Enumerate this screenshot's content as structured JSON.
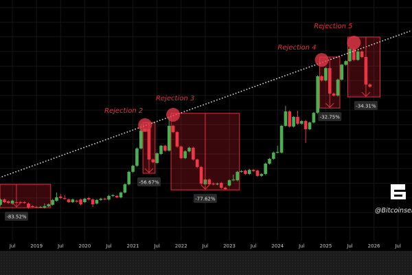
{
  "chart_data": {
    "type": "candlestick",
    "title": "",
    "xlabel": "",
    "ylabel": "",
    "y_scale": "unlabeled relative scale (no price axis shown)",
    "ylim": [
      0,
      100
    ],
    "grid": true,
    "colors": {
      "up": "#4caf50",
      "down": "#f23645",
      "trendline": "#d9d9d9",
      "background": "#000000"
    },
    "x_ticks": [
      {
        "month": "2018-07",
        "label": "Jul"
      },
      {
        "month": "2019-01",
        "label": "2019"
      },
      {
        "month": "2019-07",
        "label": "Jul"
      },
      {
        "month": "2020-01",
        "label": "2020"
      },
      {
        "month": "2020-07",
        "label": "Jul"
      },
      {
        "month": "2021-01",
        "label": "2021"
      },
      {
        "month": "2021-07",
        "label": "Jul"
      },
      {
        "month": "2022-01",
        "label": "2022"
      },
      {
        "month": "2022-07",
        "label": "Jul"
      },
      {
        "month": "2023-01",
        "label": "2023"
      },
      {
        "month": "2023-07",
        "label": "Jul"
      },
      {
        "month": "2024-01",
        "label": "2024"
      },
      {
        "month": "2024-07",
        "label": "Jul"
      },
      {
        "month": "2025-01",
        "label": "2025"
      },
      {
        "month": "2025-07",
        "label": "Jul"
      },
      {
        "month": "2026-01",
        "label": "2026"
      },
      {
        "month": "2026-07",
        "label": "Jul"
      }
    ],
    "candles": [
      {
        "month": "2018-04",
        "o": 14.9,
        "c": 17.1
      },
      {
        "month": "2018-05",
        "o": 17.1,
        "c": 16.0
      },
      {
        "month": "2018-06",
        "o": 16.3,
        "c": 15.7
      },
      {
        "month": "2018-07",
        "o": 15.4,
        "c": 16.6
      },
      {
        "month": "2018-08",
        "o": 16.0,
        "c": 15.9
      },
      {
        "month": "2018-09",
        "o": 16.0,
        "c": 15.7
      },
      {
        "month": "2018-10",
        "o": 16.0,
        "c": 15.7
      },
      {
        "month": "2018-11",
        "o": 15.4,
        "c": 13.7
      },
      {
        "month": "2018-12",
        "o": 14.3,
        "c": 14.0
      },
      {
        "month": "2019-01",
        "o": 14.0,
        "c": 13.9
      },
      {
        "month": "2019-02",
        "o": 13.9,
        "c": 14.0
      },
      {
        "month": "2019-03",
        "o": 13.7,
        "c": 14.3,
        "h": 15.4
      },
      {
        "month": "2019-04",
        "o": 14.3,
        "c": 15.1
      },
      {
        "month": "2019-05",
        "o": 14.9,
        "c": 16.9
      },
      {
        "month": "2019-06",
        "o": 16.6,
        "c": 18.0,
        "h": 20.0
      },
      {
        "month": "2019-07",
        "o": 18.3,
        "c": 17.7,
        "h": 19.4
      },
      {
        "month": "2019-08",
        "o": 17.7,
        "c": 17.4,
        "h": 18.9
      },
      {
        "month": "2019-09",
        "o": 17.1,
        "c": 16.0
      },
      {
        "month": "2019-10",
        "o": 16.0,
        "c": 17.1
      },
      {
        "month": "2019-11",
        "o": 16.6,
        "c": 16.3
      },
      {
        "month": "2019-12",
        "o": 17.1,
        "c": 15.1
      },
      {
        "month": "2020-01",
        "o": 16.0,
        "c": 17.4
      },
      {
        "month": "2020-02",
        "o": 17.7,
        "c": 17.1
      },
      {
        "month": "2020-03",
        "o": 17.1,
        "c": 15.1,
        "l": 14.0
      },
      {
        "month": "2020-04",
        "o": 15.4,
        "c": 16.9
      },
      {
        "month": "2020-05",
        "o": 16.9,
        "c": 17.4
      },
      {
        "month": "2020-06",
        "o": 17.4,
        "c": 17.3
      },
      {
        "month": "2020-07",
        "o": 17.1,
        "c": 18.6
      },
      {
        "month": "2020-08",
        "o": 18.6,
        "c": 18.9
      },
      {
        "month": "2020-09",
        "o": 18.6,
        "c": 18.0
      },
      {
        "month": "2020-10",
        "o": 18.0,
        "c": 20.0
      },
      {
        "month": "2020-11",
        "o": 20.0,
        "c": 23.4
      },
      {
        "month": "2020-12",
        "o": 23.4,
        "c": 28.6
      },
      {
        "month": "2021-01",
        "o": 28.6,
        "c": 31.1
      },
      {
        "month": "2021-02",
        "o": 31.1,
        "c": 38.3
      },
      {
        "month": "2021-03",
        "o": 38.3,
        "c": 45.7,
        "h": 48.6
      },
      {
        "month": "2021-04",
        "o": 46.3,
        "c": 45.7
      },
      {
        "month": "2021-05",
        "o": 46.3,
        "c": 33.7
      },
      {
        "month": "2021-06",
        "o": 33.7,
        "c": 32.6
      },
      {
        "month": "2021-07",
        "o": 32.3,
        "c": 36.3
      },
      {
        "month": "2021-08",
        "o": 36.0,
        "c": 39.4
      },
      {
        "month": "2021-09",
        "o": 39.4,
        "c": 37.4
      },
      {
        "month": "2021-10",
        "o": 37.4,
        "c": 47.7,
        "h": 51.4
      },
      {
        "month": "2021-11",
        "o": 47.7,
        "c": 45.1
      },
      {
        "month": "2021-12",
        "o": 45.1,
        "c": 39.1
      },
      {
        "month": "2022-01",
        "o": 39.1,
        "c": 34.3
      },
      {
        "month": "2022-02",
        "o": 34.3,
        "c": 37.1
      },
      {
        "month": "2022-03",
        "o": 37.1,
        "c": 38.6
      },
      {
        "month": "2022-04",
        "o": 38.6,
        "c": 33.7
      },
      {
        "month": "2022-05",
        "o": 33.7,
        "c": 30.6
      },
      {
        "month": "2022-06",
        "o": 30.6,
        "c": 23.7
      },
      {
        "month": "2022-07",
        "o": 23.4,
        "c": 25.4
      },
      {
        "month": "2022-08",
        "o": 25.4,
        "c": 23.4
      },
      {
        "month": "2022-09",
        "o": 23.7,
        "c": 23.4
      },
      {
        "month": "2022-10",
        "o": 23.4,
        "c": 23.7
      },
      {
        "month": "2022-11",
        "o": 24.0,
        "c": 22.0
      },
      {
        "month": "2022-12",
        "o": 22.0,
        "c": 21.4
      },
      {
        "month": "2023-01",
        "o": 22.9,
        "c": 25.1
      },
      {
        "month": "2023-02",
        "o": 25.1,
        "c": 25.4,
        "h": 27.4
      },
      {
        "month": "2023-03",
        "o": 25.1,
        "c": 28.6
      },
      {
        "month": "2023-04",
        "o": 28.6,
        "c": 28.9
      },
      {
        "month": "2023-05",
        "o": 29.1,
        "c": 27.7
      },
      {
        "month": "2023-06",
        "o": 27.7,
        "c": 29.4
      },
      {
        "month": "2023-07",
        "o": 29.4,
        "c": 28.9
      },
      {
        "month": "2023-08",
        "o": 29.1,
        "c": 26.9
      },
      {
        "month": "2023-09",
        "o": 26.9,
        "c": 27.7
      },
      {
        "month": "2023-10",
        "o": 27.7,
        "c": 32.0
      },
      {
        "month": "2023-11",
        "o": 32.0,
        "c": 34.0
      },
      {
        "month": "2023-12",
        "o": 34.0,
        "c": 36.6
      },
      {
        "month": "2024-01",
        "o": 36.6,
        "c": 36.9,
        "h": 39.4
      },
      {
        "month": "2024-02",
        "o": 36.6,
        "c": 47.7
      },
      {
        "month": "2024-03",
        "o": 47.7,
        "c": 53.7,
        "h": 56.0
      },
      {
        "month": "2024-04",
        "o": 53.7,
        "c": 47.4
      },
      {
        "month": "2024-05",
        "o": 47.4,
        "c": 51.4
      },
      {
        "month": "2024-06",
        "o": 51.4,
        "c": 48.6,
        "h": 54.0
      },
      {
        "month": "2024-07",
        "o": 48.6,
        "c": 49.7
      },
      {
        "month": "2024-08",
        "o": 49.7,
        "c": 46.3,
        "l": 40.6
      },
      {
        "month": "2024-09",
        "o": 46.3,
        "c": 49.1
      },
      {
        "month": "2024-10",
        "o": 49.1,
        "c": 53.1
      },
      {
        "month": "2024-11",
        "o": 53.1,
        "c": 68.3
      },
      {
        "month": "2024-12",
        "o": 68.3,
        "c": 66.6
      },
      {
        "month": "2025-01",
        "o": 66.6,
        "c": 71.7
      },
      {
        "month": "2025-02",
        "o": 71.7,
        "c": 61.1
      },
      {
        "month": "2025-03",
        "o": 61.1,
        "c": 60.3
      },
      {
        "month": "2025-04",
        "o": 60.3,
        "c": 66.9
      },
      {
        "month": "2025-05",
        "o": 66.9,
        "c": 73.1
      },
      {
        "month": "2025-06",
        "o": 73.1,
        "c": 74.6
      },
      {
        "month": "2025-07",
        "o": 74.6,
        "c": 79.7
      },
      {
        "month": "2025-08",
        "o": 79.7,
        "c": 75.1
      },
      {
        "month": "2025-09",
        "o": 75.1,
        "c": 78.6
      },
      {
        "month": "2025-10",
        "o": 78.6,
        "c": 76.3
      },
      {
        "month": "2025-11",
        "o": 76.3,
        "c": 64.9
      },
      {
        "month": "2025-12",
        "o": 64.9,
        "c": 64.0
      }
    ],
    "trendline": {
      "style": "dotted",
      "from": {
        "month": "2018-03",
        "value": 25.7
      },
      "to": {
        "month": "2026-10",
        "value": 87.1
      }
    },
    "rejections": [
      {
        "label": "",
        "drawdown": "-83.52%",
        "box": {
          "from": "2018-03",
          "to": "2019-04",
          "top": 23.4,
          "bottom": 13.7
        },
        "arrow_month": "2018-08"
      },
      {
        "label": "Rejection 2",
        "drawdown": "-56.67%",
        "box": {
          "from": "2021-04",
          "to": "2021-06",
          "top": 49.1,
          "bottom": 28.0
        },
        "arrow_month": "2021-05",
        "marker": {
          "month": "2021-04",
          "value": 48.0
        }
      },
      {
        "label": "Rejection 3",
        "drawdown": "-77.62%",
        "box": {
          "from": "2021-11",
          "to": "2023-03",
          "top": 52.9,
          "bottom": 21.1
        },
        "arrow_month": "2022-07",
        "marker": {
          "month": "2021-11",
          "value": 52.3
        }
      },
      {
        "label": "Rejection 4",
        "drawdown": "-32.75%",
        "box": {
          "from": "2024-12",
          "to": "2025-04",
          "top": 76.3,
          "bottom": 55.1
        },
        "arrow_month": "2025-02",
        "marker": {
          "month": "2024-12",
          "value": 75.1
        }
      },
      {
        "label": "Rejection 5",
        "drawdown": "-34.31%",
        "box": {
          "from": "2025-07",
          "to": "2026-02",
          "top": 84.6,
          "bottom": 59.7
        },
        "arrow_month": "2025-11",
        "marker": {
          "month": "2025-08",
          "value": 82.3
        }
      }
    ]
  },
  "watermark": {
    "logo": "B",
    "handle": "@Bitcoinsen"
  }
}
